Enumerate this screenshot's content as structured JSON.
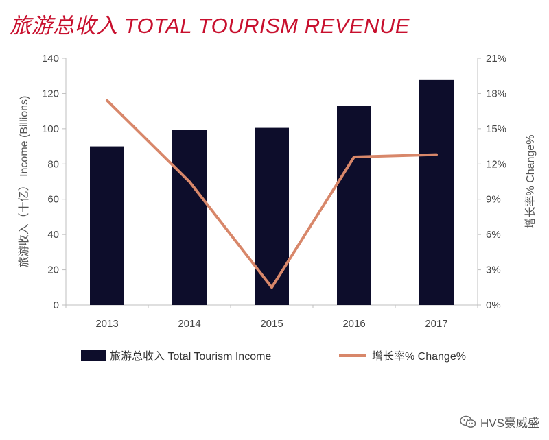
{
  "chart_data": {
    "type": "bar",
    "title": "旅游总收入 TOTAL TOURISM REVENUE",
    "categories": [
      "2013",
      "2014",
      "2015",
      "2016",
      "2017"
    ],
    "series": [
      {
        "name": "旅游总收入 Total Tourism Income",
        "type": "bar",
        "axis": "left",
        "values": [
          90,
          99.5,
          100.5,
          113,
          128
        ]
      },
      {
        "name": "增长率% Change%",
        "type": "line",
        "axis": "right",
        "values": [
          17.4,
          10.5,
          1.5,
          12.6,
          12.8
        ]
      }
    ],
    "ylabel": "旅游收入（十亿） Income (Billions)",
    "ylim": [
      0,
      140
    ],
    "yticks": [
      "0",
      "20",
      "40",
      "60",
      "80",
      "100",
      "120",
      "140"
    ],
    "y2label": "增长率% Change%",
    "y2lim": [
      0,
      21
    ],
    "y2ticks": [
      "0%",
      "3%",
      "6%",
      "9%",
      "12%",
      "15%",
      "18%",
      "21%"
    ],
    "grid": false,
    "legend_position": "bottom",
    "colors": {
      "bar": "#0d0d2b",
      "line": "#d8876a",
      "title": "#c8102e"
    }
  },
  "watermark": {
    "text": "HVS豪威盛",
    "icon": "wechat-icon"
  }
}
